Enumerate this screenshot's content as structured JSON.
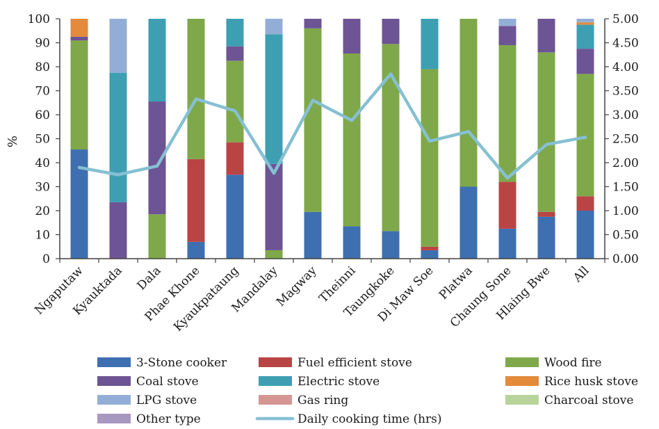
{
  "chart_data": {
    "type": "bar",
    "stacked": true,
    "ylabel": "%",
    "ylim": [
      0,
      100
    ],
    "y_ticks": [
      "0",
      "10",
      "20",
      "30",
      "40",
      "50",
      "60",
      "70",
      "80",
      "90",
      "100"
    ],
    "y2lim": [
      0,
      5
    ],
    "y2_ticks": [
      "0.00",
      "0.50",
      "1.00",
      "1.50",
      "2.00",
      "2.50",
      "3.00",
      "3.50",
      "4.00",
      "4.50",
      "5.00"
    ],
    "grid": false,
    "legend_position": "bottom",
    "categories": [
      "Ngaputaw",
      "Kyauktada",
      "Dala",
      "Phae Khone",
      "Kyaukpataung",
      "Mandalay",
      "Magway",
      "Theinni",
      "Taungkoke",
      "Di Maw Soe",
      "Platwa",
      "Chaung Sone",
      "Hlaing Bwe",
      "All"
    ],
    "series": [
      {
        "name": "3-Stone cooker",
        "color": "#3e6fb0",
        "values": [
          45.5,
          0,
          0,
          7,
          35,
          0,
          19.5,
          13.5,
          11.5,
          3.5,
          30,
          12.5,
          17.5,
          20
        ]
      },
      {
        "name": "Fuel efficient stove",
        "color": "#b94444",
        "values": [
          0,
          0,
          0,
          34.5,
          13.5,
          0,
          0,
          0,
          0,
          1.5,
          0,
          19.5,
          2,
          6
        ]
      },
      {
        "name": "Wood fire",
        "color": "#7fa84a",
        "values": [
          45.5,
          0,
          18.5,
          58.5,
          34,
          3.5,
          76.5,
          72,
          78,
          74,
          70,
          57,
          66.5,
          51
        ]
      },
      {
        "name": "Coal stove",
        "color": "#6d5494",
        "values": [
          1.5,
          23.5,
          47,
          0,
          6,
          36,
          4,
          14.5,
          10.5,
          0,
          0,
          8,
          14,
          10.5
        ]
      },
      {
        "name": "Electric stove",
        "color": "#3e9fb3",
        "values": [
          0,
          54,
          34.5,
          0,
          11.5,
          54,
          0,
          0,
          0,
          21,
          0,
          0,
          0,
          10
        ]
      },
      {
        "name": "Rice husk stove",
        "color": "#e38a3b",
        "values": [
          7.5,
          0,
          0,
          0,
          0,
          0,
          0,
          0,
          0,
          0,
          0,
          0,
          0,
          1
        ]
      },
      {
        "name": "LPG stove",
        "color": "#93aed6",
        "values": [
          0,
          22.5,
          0,
          0,
          0,
          6.5,
          0,
          0,
          0,
          0,
          0,
          3,
          0,
          1.5
        ]
      },
      {
        "name": "Gas ring",
        "color": "#d59593",
        "values": [
          0,
          0,
          0,
          0,
          0,
          0,
          0,
          0,
          0,
          0,
          0,
          0,
          0,
          0
        ]
      },
      {
        "name": "Charcoal stove",
        "color": "#b8d49a",
        "values": [
          0,
          0,
          0,
          0,
          0,
          0,
          0,
          0,
          0,
          0,
          0,
          0,
          0,
          0
        ]
      },
      {
        "name": "Other type",
        "color": "#a897c0",
        "values": [
          0,
          0,
          0,
          0,
          0,
          0,
          0,
          0,
          0,
          0,
          0,
          0,
          0,
          0
        ]
      }
    ],
    "line_series": {
      "name": "Daily cooking time (hrs)",
      "color": "#86c0d2",
      "axis": "right",
      "values": [
        1.9,
        1.75,
        1.93,
        3.33,
        3.08,
        1.78,
        3.3,
        2.88,
        3.85,
        2.45,
        2.65,
        1.68,
        2.38,
        2.53
      ]
    }
  }
}
